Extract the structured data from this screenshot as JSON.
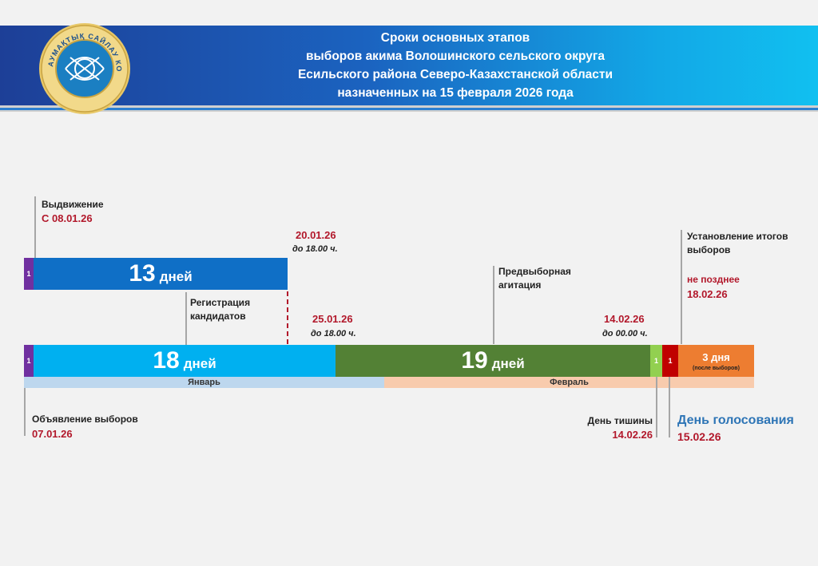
{
  "header": {
    "title_lines": [
      "Сроки основных этапов",
      "выборов акима Волошинского сельского округа",
      "Есильского района Северо-Казахстанской области",
      "назначенных на 15 февраля 2026 года"
    ],
    "logo_text": "АУМАҚТЫҚ САЙЛАУ КОМИССИЯСЫ"
  },
  "nomination": {
    "label": "Выдвижение",
    "date": "С 08.01.26",
    "day_marker": "1",
    "days_number": "13",
    "days_unit": "дней",
    "end_date": "20.01.26",
    "end_time": "до 18.00 ч."
  },
  "registration": {
    "label_line1": "Регистрация",
    "label_line2": "кандидатов",
    "end_date": "25.01.26",
    "end_time": "до 18.00 ч."
  },
  "main_bar": {
    "day_marker": "1",
    "reg_days_number": "18",
    "reg_days_unit": "дней",
    "campaign_days_number": "19",
    "campaign_days_unit": "дней",
    "silence_marker": "1",
    "voting_marker": "1",
    "results_days": "3 дня",
    "results_note": "(после выборов)"
  },
  "campaign": {
    "label_line1": "Предвыборная",
    "label_line2": "агитация",
    "end_date": "14.02.26",
    "end_time": "до 00.00 ч."
  },
  "results": {
    "label_line1": "Установление итогов",
    "label_line2": "выборов",
    "deadline_label": "не позднее",
    "deadline_date": "18.02.26"
  },
  "months": {
    "january": "Январь",
    "february": "Февраль"
  },
  "announcement": {
    "label": "Объявление выборов",
    "date": "07.01.26"
  },
  "silence_day": {
    "label": "День тишины",
    "date": "14.02.26"
  },
  "voting_day": {
    "label": "День голосования",
    "date": "15.02.26"
  },
  "colors": {
    "purple": "#7030a0",
    "dark_blue": "#0f6fc6",
    "light_blue": "#00b0f0",
    "green": "#538135",
    "light_green": "#92d050",
    "dark_red": "#c00000",
    "orange": "#ed7d31",
    "month_jan": "#bdd7ee",
    "month_feb": "#f8cbad",
    "accent_red": "#b2182b",
    "voting_blue": "#2e75b6"
  }
}
